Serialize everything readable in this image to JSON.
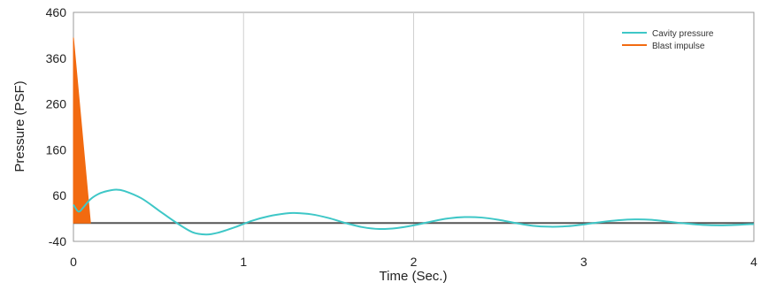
{
  "chart_data": {
    "type": "line",
    "xlabel": "Time (Sec.)",
    "ylabel": "Pressure (PSF)",
    "xlim": [
      0,
      4
    ],
    "ylim": [
      -40,
      460
    ],
    "x_ticks": [
      "0",
      "1",
      "2",
      "3",
      "4"
    ],
    "y_ticks": [
      "-40",
      "60",
      "160",
      "260",
      "360",
      "460"
    ],
    "grid": "vertical",
    "legend_position": "top-right",
    "zero_line": 0,
    "series": [
      {
        "name": "Cavity pressure",
        "color": "#3ec7c7",
        "style": "line",
        "x": [
          0,
          0.03,
          0.06,
          0.1,
          0.15,
          0.2,
          0.25,
          0.3,
          0.4,
          0.5,
          0.6,
          0.7,
          0.78,
          0.85,
          0.95,
          1.05,
          1.15,
          1.25,
          1.3,
          1.4,
          1.5,
          1.6,
          1.7,
          1.8,
          1.9,
          2.0,
          2.1,
          2.2,
          2.3,
          2.4,
          2.5,
          2.6,
          2.7,
          2.8,
          2.9,
          3.0,
          3.1,
          3.2,
          3.3,
          3.4,
          3.5,
          3.6,
          3.7,
          3.8,
          3.9,
          4.0
        ],
        "values": [
          40,
          25,
          35,
          52,
          64,
          70,
          73,
          70,
          54,
          28,
          2,
          -20,
          -25,
          -21,
          -9,
          5,
          15,
          21,
          22,
          19,
          11,
          0,
          -9,
          -13,
          -11,
          -5,
          3,
          10,
          13,
          12,
          7,
          0,
          -6,
          -8,
          -7,
          -3,
          2,
          6,
          8,
          7,
          3,
          -1,
          -4,
          -5,
          -4,
          -2
        ]
      },
      {
        "name": "Blast impulse",
        "color": "#f26a10",
        "style": "area",
        "x": [
          0,
          0,
          0.1
        ],
        "values": [
          0,
          405,
          0
        ]
      }
    ]
  }
}
